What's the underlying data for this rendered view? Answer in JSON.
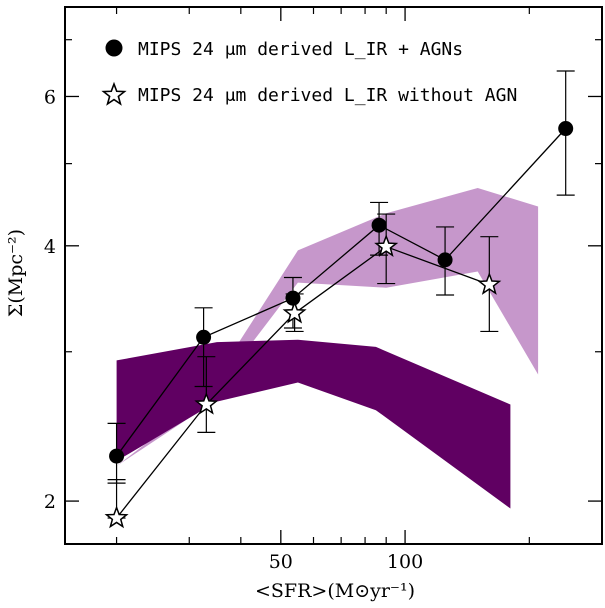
{
  "chart_data": {
    "type": "scatter",
    "xlabel": "<SFR>(M⊙yr⁻¹)",
    "ylabel": "Σ(Mpc⁻²)",
    "x_scale": "log",
    "y_scale": "log",
    "xlim": [
      15,
      300
    ],
    "ylim": [
      1.78,
      7.65
    ],
    "x_tick_labels": [
      "50",
      "100"
    ],
    "y_tick_labels": [
      "2",
      "4",
      "6"
    ],
    "legend_position": "top-left",
    "grid": false,
    "series": [
      {
        "name": "MIPS 24 μm derived L_IR + AGNs",
        "marker": "filled-circle",
        "color": "#000000",
        "points": [
          {
            "x": 20.0,
            "y": 2.26,
            "err_low": 0.16,
            "err_high": 0.21
          },
          {
            "x": 32.5,
            "y": 3.12,
            "err_low": 0.39,
            "err_high": 0.26
          },
          {
            "x": 53.5,
            "y": 3.47,
            "err_low": 0.27,
            "err_high": 0.2
          },
          {
            "x": 86.5,
            "y": 4.23,
            "err_low": 0.33,
            "err_high": 0.27
          },
          {
            "x": 125.0,
            "y": 3.85,
            "err_low": 0.35,
            "err_high": 0.36
          },
          {
            "x": 245.0,
            "y": 5.5,
            "err_low": 0.91,
            "err_high": 0.93
          }
        ]
      },
      {
        "name": "MIPS 24 μm derived L_IR without AGN",
        "marker": "open-star",
        "color": "#000000",
        "points": [
          {
            "x": 20.0,
            "y": 1.91,
            "err_low": 0.0,
            "err_high": 0.21
          },
          {
            "x": 33.0,
            "y": 2.6,
            "err_low": 0.19,
            "err_high": 0.36
          },
          {
            "x": 54.0,
            "y": 3.33,
            "err_low": 0.16,
            "err_high": 0.18
          },
          {
            "x": 90.0,
            "y": 3.99,
            "err_low": 0.38,
            "err_high": 0.37
          },
          {
            "x": 160.0,
            "y": 3.6,
            "err_low": 0.43,
            "err_high": 0.5
          }
        ]
      }
    ],
    "bands": [
      {
        "fill": "#c18ec7",
        "opacity": 0.92,
        "upper": [
          [
            20,
            2.2
          ],
          [
            32,
            2.62
          ],
          [
            55,
            3.95
          ],
          [
            90,
            4.37
          ],
          [
            150,
            4.68
          ],
          [
            210,
            4.45
          ]
        ],
        "lower": [
          [
            210,
            2.82
          ],
          [
            150,
            3.73
          ],
          [
            90,
            3.57
          ],
          [
            55,
            3.62
          ],
          [
            32,
            2.56
          ],
          [
            20,
            2.2
          ]
        ]
      },
      {
        "fill": "#600062",
        "opacity": 1,
        "upper": [
          [
            20,
            2.93
          ],
          [
            35,
            3.08
          ],
          [
            55,
            3.1
          ],
          [
            85,
            3.04
          ],
          [
            180,
            2.6
          ]
        ],
        "lower": [
          [
            180,
            1.96
          ],
          [
            85,
            2.56
          ],
          [
            55,
            2.76
          ],
          [
            35,
            2.62
          ],
          [
            20,
            2.23
          ]
        ]
      }
    ]
  }
}
